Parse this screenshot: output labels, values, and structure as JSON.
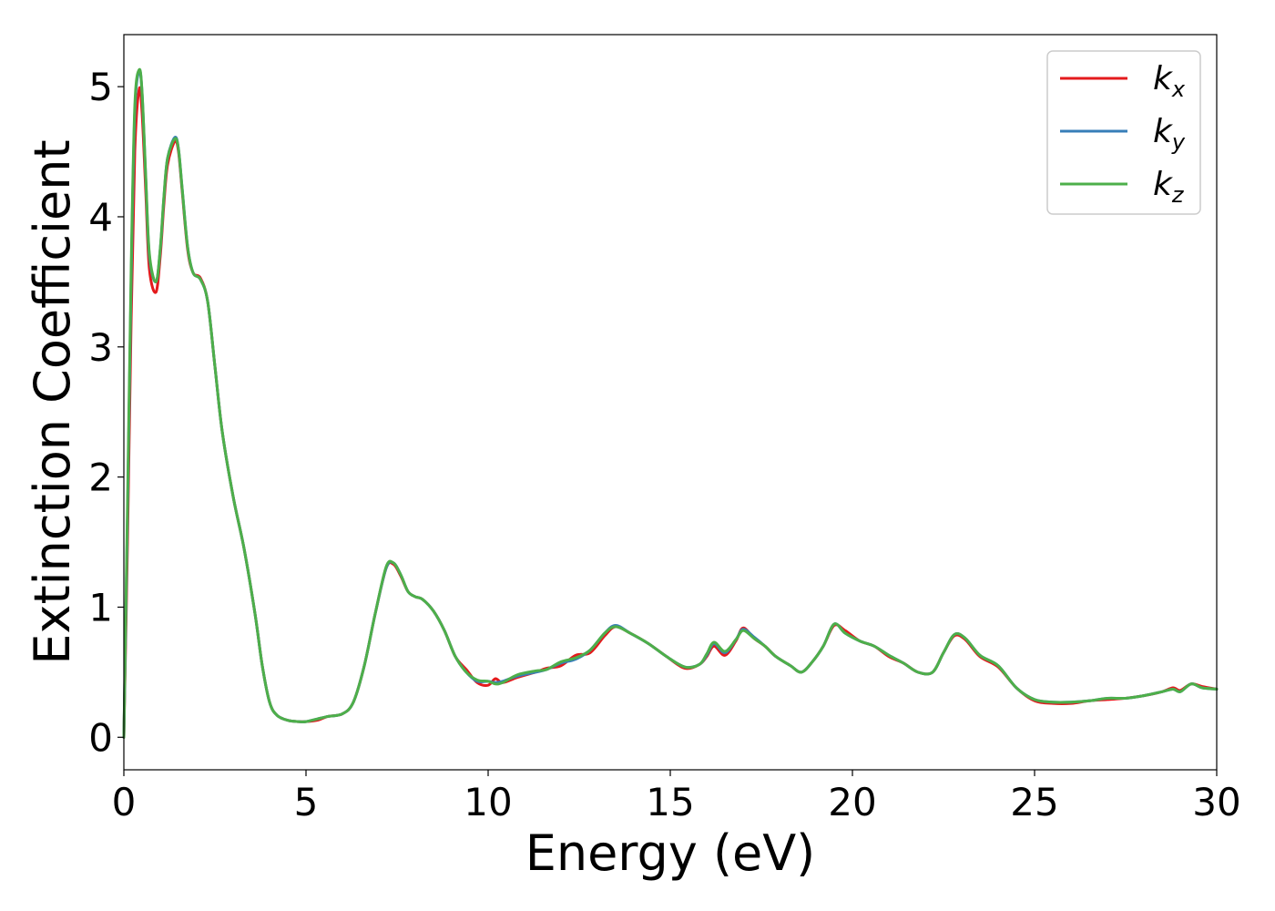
{
  "chart_data": {
    "type": "line",
    "title": "",
    "xlabel": "Energy (eV)",
    "ylabel": "Extinction Coefficient",
    "xlim": [
      0,
      30
    ],
    "ylim": [
      -0.25,
      5.4
    ],
    "xticks": [
      0,
      5,
      10,
      15,
      20,
      25,
      30
    ],
    "yticks": [
      0,
      1,
      2,
      3,
      4,
      5
    ],
    "grid": false,
    "legend_position": "top-right",
    "series": [
      {
        "name": "k_x",
        "label_main": "k",
        "label_sub": "x",
        "color": "#e41a1c",
        "x": [
          0,
          0.1,
          0.2,
          0.3,
          0.42,
          0.5,
          0.6,
          0.7,
          0.88,
          1.0,
          1.1,
          1.2,
          1.4,
          1.5,
          1.6,
          1.75,
          1.9,
          2.1,
          2.3,
          2.5,
          2.7,
          3.0,
          3.3,
          3.6,
          3.8,
          4.0,
          4.2,
          4.5,
          4.8,
          5.0,
          5.3,
          5.6,
          6.0,
          6.3,
          6.6,
          6.9,
          7.2,
          7.4,
          7.6,
          7.8,
          8.0,
          8.2,
          8.5,
          8.8,
          9.1,
          9.4,
          9.7,
          10.0,
          10.2,
          10.4,
          10.8,
          11.3,
          11.6,
          12.0,
          12.4,
          12.8,
          13.2,
          13.5,
          13.9,
          14.4,
          14.9,
          15.4,
          15.8,
          16.0,
          16.2,
          16.5,
          16.8,
          17.0,
          17.3,
          17.6,
          17.9,
          18.3,
          18.6,
          18.9,
          19.2,
          19.5,
          19.8,
          20.2,
          20.6,
          21.0,
          21.4,
          21.8,
          22.2,
          22.5,
          22.8,
          23.1,
          23.5,
          24.0,
          24.5,
          25.0,
          25.5,
          26.0,
          26.5,
          27.0,
          27.5,
          28.0,
          28.5,
          28.8,
          29.0,
          29.3,
          29.6,
          30.0
        ],
        "y": [
          0.0,
          1.5,
          3.2,
          4.5,
          4.98,
          4.8,
          4.2,
          3.6,
          3.42,
          3.7,
          4.1,
          4.4,
          4.58,
          4.5,
          4.2,
          3.75,
          3.57,
          3.53,
          3.35,
          2.85,
          2.35,
          1.85,
          1.45,
          0.95,
          0.55,
          0.27,
          0.17,
          0.13,
          0.12,
          0.12,
          0.13,
          0.16,
          0.18,
          0.27,
          0.55,
          0.95,
          1.3,
          1.33,
          1.24,
          1.12,
          1.08,
          1.06,
          0.97,
          0.82,
          0.62,
          0.52,
          0.42,
          0.4,
          0.45,
          0.42,
          0.46,
          0.5,
          0.53,
          0.55,
          0.63,
          0.65,
          0.78,
          0.85,
          0.8,
          0.72,
          0.62,
          0.53,
          0.56,
          0.62,
          0.7,
          0.63,
          0.74,
          0.84,
          0.76,
          0.7,
          0.62,
          0.55,
          0.5,
          0.58,
          0.7,
          0.86,
          0.82,
          0.74,
          0.7,
          0.62,
          0.57,
          0.5,
          0.5,
          0.65,
          0.78,
          0.75,
          0.62,
          0.54,
          0.38,
          0.28,
          0.26,
          0.26,
          0.28,
          0.29,
          0.3,
          0.32,
          0.35,
          0.38,
          0.36,
          0.41,
          0.39,
          0.37
        ]
      },
      {
        "name": "k_y",
        "label_main": "k",
        "label_sub": "y",
        "color": "#377eb8",
        "x": [
          0,
          0.1,
          0.2,
          0.3,
          0.42,
          0.5,
          0.6,
          0.7,
          0.88,
          1.0,
          1.1,
          1.2,
          1.4,
          1.5,
          1.6,
          1.75,
          1.9,
          2.1,
          2.3,
          2.5,
          2.7,
          3.0,
          3.3,
          3.6,
          3.8,
          4.0,
          4.2,
          4.5,
          4.8,
          5.0,
          5.3,
          5.6,
          6.0,
          6.3,
          6.6,
          6.9,
          7.2,
          7.4,
          7.6,
          7.8,
          8.0,
          8.2,
          8.5,
          8.8,
          9.1,
          9.4,
          9.7,
          10.0,
          10.2,
          10.4,
          10.8,
          11.3,
          11.6,
          12.0,
          12.4,
          12.8,
          13.2,
          13.5,
          13.9,
          14.4,
          14.9,
          15.4,
          15.8,
          16.0,
          16.2,
          16.5,
          16.8,
          17.0,
          17.3,
          17.6,
          17.9,
          18.3,
          18.6,
          18.9,
          19.2,
          19.5,
          19.8,
          20.2,
          20.6,
          21.0,
          21.4,
          21.8,
          22.2,
          22.5,
          22.8,
          23.1,
          23.5,
          24.0,
          24.5,
          25.0,
          25.5,
          26.0,
          26.5,
          27.0,
          27.5,
          28.0,
          28.5,
          28.8,
          29.0,
          29.3,
          29.6,
          30.0
        ],
        "y": [
          0.0,
          1.7,
          3.5,
          4.8,
          5.12,
          4.95,
          4.3,
          3.7,
          3.5,
          3.75,
          4.15,
          4.45,
          4.61,
          4.52,
          4.22,
          3.77,
          3.57,
          3.52,
          3.35,
          2.85,
          2.35,
          1.85,
          1.45,
          0.95,
          0.55,
          0.27,
          0.17,
          0.13,
          0.12,
          0.12,
          0.14,
          0.16,
          0.18,
          0.27,
          0.55,
          0.95,
          1.3,
          1.34,
          1.25,
          1.12,
          1.08,
          1.06,
          0.97,
          0.82,
          0.62,
          0.5,
          0.43,
          0.43,
          0.42,
          0.43,
          0.47,
          0.5,
          0.52,
          0.57,
          0.6,
          0.67,
          0.8,
          0.86,
          0.8,
          0.72,
          0.62,
          0.54,
          0.56,
          0.63,
          0.72,
          0.65,
          0.75,
          0.83,
          0.77,
          0.7,
          0.62,
          0.55,
          0.5,
          0.58,
          0.7,
          0.87,
          0.8,
          0.74,
          0.7,
          0.63,
          0.57,
          0.5,
          0.5,
          0.65,
          0.79,
          0.76,
          0.63,
          0.55,
          0.38,
          0.29,
          0.27,
          0.27,
          0.28,
          0.3,
          0.3,
          0.32,
          0.35,
          0.37,
          0.35,
          0.41,
          0.38,
          0.37
        ]
      },
      {
        "name": "k_z",
        "label_main": "k",
        "label_sub": "z",
        "color": "#4daf4a",
        "x": [
          0,
          0.1,
          0.2,
          0.3,
          0.42,
          0.5,
          0.6,
          0.7,
          0.88,
          1.0,
          1.1,
          1.2,
          1.4,
          1.5,
          1.6,
          1.75,
          1.9,
          2.1,
          2.3,
          2.5,
          2.7,
          3.0,
          3.3,
          3.6,
          3.8,
          4.0,
          4.2,
          4.5,
          4.8,
          5.0,
          5.3,
          5.6,
          6.0,
          6.3,
          6.6,
          6.9,
          7.2,
          7.4,
          7.6,
          7.8,
          8.0,
          8.2,
          8.5,
          8.8,
          9.1,
          9.4,
          9.7,
          10.0,
          10.2,
          10.4,
          10.8,
          11.3,
          11.6,
          12.0,
          12.4,
          12.8,
          13.2,
          13.5,
          13.9,
          14.4,
          14.9,
          15.4,
          15.8,
          16.0,
          16.2,
          16.5,
          16.8,
          17.0,
          17.3,
          17.6,
          17.9,
          18.3,
          18.6,
          18.9,
          19.2,
          19.5,
          19.8,
          20.2,
          20.6,
          21.0,
          21.4,
          21.8,
          22.2,
          22.5,
          22.8,
          23.1,
          23.5,
          24.0,
          24.5,
          25.0,
          25.5,
          26.0,
          26.5,
          27.0,
          27.5,
          28.0,
          28.5,
          28.8,
          29.0,
          29.3,
          29.6,
          30.0
        ],
        "y": [
          0.0,
          1.8,
          3.6,
          4.85,
          5.13,
          4.96,
          4.32,
          3.72,
          3.5,
          3.76,
          4.16,
          4.45,
          4.6,
          4.52,
          4.22,
          3.77,
          3.57,
          3.52,
          3.35,
          2.85,
          2.35,
          1.85,
          1.45,
          0.95,
          0.55,
          0.27,
          0.17,
          0.13,
          0.12,
          0.12,
          0.14,
          0.16,
          0.18,
          0.27,
          0.55,
          0.95,
          1.31,
          1.34,
          1.25,
          1.12,
          1.08,
          1.06,
          0.97,
          0.82,
          0.62,
          0.5,
          0.44,
          0.43,
          0.41,
          0.42,
          0.48,
          0.51,
          0.52,
          0.58,
          0.61,
          0.67,
          0.8,
          0.85,
          0.8,
          0.72,
          0.62,
          0.54,
          0.56,
          0.64,
          0.73,
          0.66,
          0.75,
          0.82,
          0.76,
          0.7,
          0.62,
          0.55,
          0.5,
          0.58,
          0.7,
          0.87,
          0.8,
          0.74,
          0.7,
          0.63,
          0.57,
          0.5,
          0.5,
          0.65,
          0.79,
          0.76,
          0.63,
          0.55,
          0.38,
          0.29,
          0.27,
          0.27,
          0.28,
          0.3,
          0.3,
          0.32,
          0.35,
          0.37,
          0.35,
          0.41,
          0.38,
          0.37
        ]
      }
    ]
  }
}
